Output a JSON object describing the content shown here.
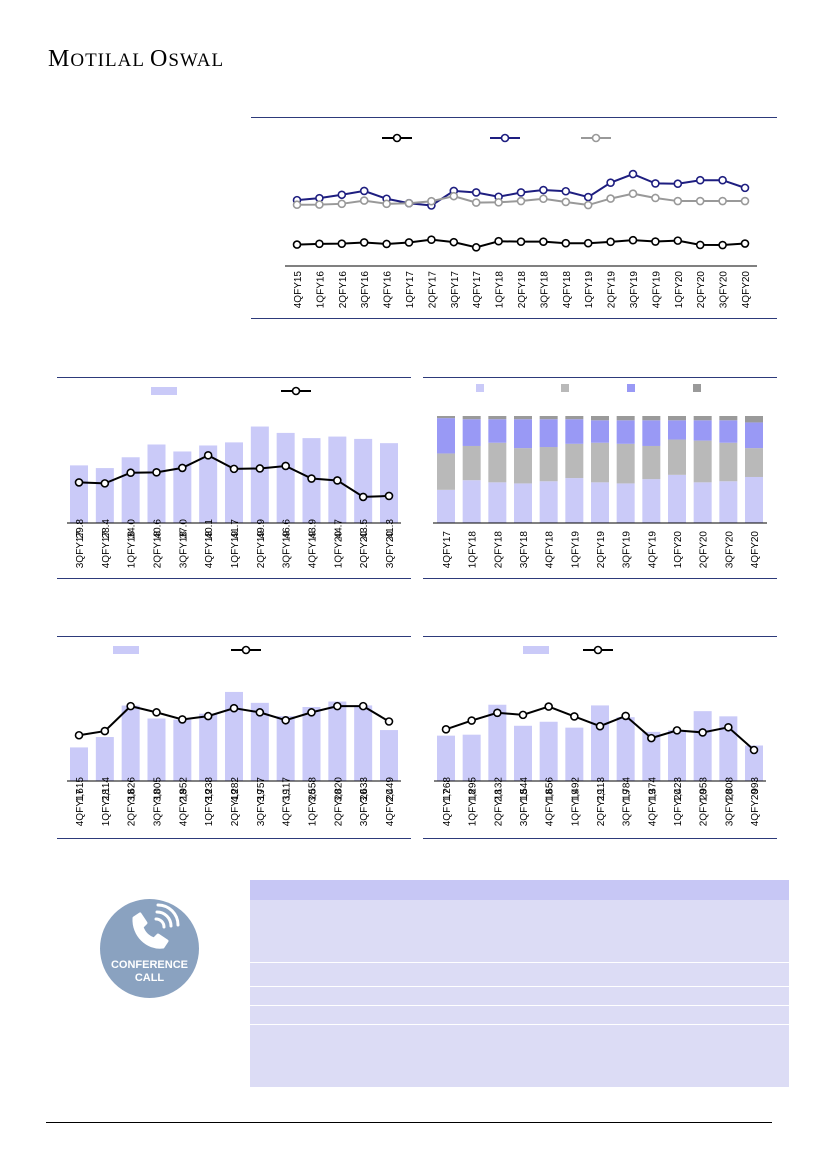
{
  "header": {
    "brand_first": "M",
    "brand_rest1": "OTILAL ",
    "brand_second": "O",
    "brand_rest2": "SWAL"
  },
  "colors": {
    "navy": "#1e1e80",
    "grey_line": "#999999",
    "bar": "#cacaf8",
    "bar_purple": "#9999f5",
    "bar_grey": "#b9b9b9",
    "bar_dark_grey": "#9a9a9a",
    "rule": "#2d3a7a"
  },
  "chart_data": [
    {
      "type": "line",
      "categories": [
        "4QFY15",
        "1QFY16",
        "2QFY16",
        "3QFY16",
        "4QFY16",
        "1QFY17",
        "2QFY17",
        "3QFY17",
        "4QFY17",
        "1QFY18",
        "2QFY18",
        "3QFY18",
        "4QFY18",
        "1QFY19",
        "2QFY19",
        "3QFY19",
        "4QFY19",
        "1QFY20",
        "2QFY20",
        "3QFY20",
        "4QFY20"
      ],
      "series": [
        {
          "values": [
            12.0,
            12.5,
            12.6,
            13.4,
            12.4,
            13.4,
            15.2,
            13.6,
            10.2,
            14.2,
            13.9,
            13.9,
            12.9,
            12.9,
            13.8,
            14.9,
            14.0,
            14.6,
            11.8,
            11.7,
            12.7
          ]
        },
        {
          "values": [
            41.0,
            42.3,
            44.5,
            47.0,
            41.9,
            39.0,
            37.5,
            47.0,
            46.0,
            43.2,
            46.0,
            47.6,
            46.8,
            43.0,
            52.4,
            58.0,
            51.9,
            51.7,
            54.0,
            54.0,
            49.0
          ]
        },
        {
          "values": [
            38.0,
            38.1,
            38.6,
            40.7,
            38.6,
            39.0,
            40.3,
            43.6,
            39.4,
            39.6,
            40.4,
            41.9,
            39.8,
            37.8,
            42.0,
            45.2,
            42.4,
            40.4,
            40.4,
            40.4,
            40.4
          ]
        }
      ],
      "ylim": [
        0,
        75
      ]
    },
    {
      "type": "bar",
      "categories": [
        "3QFY17",
        "4QFY17",
        "1QFY18",
        "2QFY18",
        "3QFY18",
        "4QFY18",
        "1QFY19",
        "2QFY19",
        "3QFY19",
        "4QFY19",
        "1QFY20",
        "2QFY20",
        "3QFY20"
      ],
      "bar_values": [
        29.8,
        28.4,
        34.0,
        40.6,
        37.0,
        40.1,
        41.7,
        49.9,
        46.6,
        43.9,
        44.7,
        43.5,
        41.3
      ],
      "line_values": [
        21.0,
        20.5,
        26.0,
        26.2,
        28.5,
        35.0,
        28.0,
        28.2,
        29.5,
        23.0,
        22.0,
        13.5,
        14.0
      ],
      "ylim": [
        0,
        60
      ]
    },
    {
      "type": "bar",
      "stacked": true,
      "categories": [
        "4QFY17",
        "1QFY18",
        "2QFY18",
        "3QFY18",
        "4QFY18",
        "1QFY19",
        "2QFY19",
        "3QFY19",
        "4QFY19",
        "1QFY20",
        "2QFY20",
        "3QFY20",
        "4QFY20"
      ],
      "series": [
        {
          "values": [
            31,
            40,
            38,
            37,
            39,
            42,
            38,
            37,
            41,
            45,
            38,
            39,
            43
          ]
        },
        {
          "values": [
            34,
            32,
            37,
            33,
            32,
            32,
            37,
            37,
            31,
            33,
            39,
            36,
            27
          ]
        },
        {
          "values": [
            33,
            25,
            22,
            27,
            26,
            23,
            21,
            22,
            24,
            18,
            19,
            21,
            24
          ]
        },
        {
          "values": [
            2,
            3,
            3,
            3,
            3,
            3,
            4,
            4,
            4,
            4,
            4,
            4,
            6
          ]
        }
      ],
      "ylim": [
        0,
        100
      ]
    },
    {
      "type": "bar",
      "categories": [
        "4QFY17",
        "1QFY18",
        "2QFY18",
        "3QFY18",
        "4QFY18",
        "1QFY19",
        "2QFY19",
        "3QFY19",
        "4QFY19",
        "1QFY20",
        "2QFY20",
        "3QFY20",
        "4QFY20"
      ],
      "bar_values": [
        1615,
        2114,
        3626,
        3005,
        2952,
        3238,
        4282,
        3757,
        3117,
        3558,
        3820,
        3633,
        2449
      ],
      "bar_labels": [
        "1,615",
        "2,114",
        "3,626",
        "3,005",
        "2,952",
        "3,238",
        "4,282",
        "3,757",
        "3,117",
        "3,558",
        "3,820",
        "3,633",
        "2,449"
      ],
      "line_values": [
        11.0,
        12.0,
        18.0,
        16.5,
        14.8,
        15.6,
        17.5,
        16.5,
        14.6,
        16.5,
        18.0,
        18.0,
        14.3
      ],
      "ylim_bar": [
        0,
        5000
      ],
      "ylim_line": [
        0,
        25
      ]
    },
    {
      "type": "bar",
      "categories": [
        "4QFY17",
        "1QFY18",
        "2QFY18",
        "3QFY18",
        "4QFY18",
        "1QFY19",
        "2QFY19",
        "3QFY19",
        "4QFY19",
        "1QFY20",
        "2QFY20",
        "3QFY20",
        "4QFY20"
      ],
      "bar_values": [
        1268,
        1295,
        2132,
        1544,
        1656,
        1492,
        2113,
        1784,
        1374,
        1423,
        1953,
        1808,
        993
      ],
      "bar_labels": [
        "1,268",
        "1,295",
        "2,132",
        "1,544",
        "1,656",
        "1,492",
        "2,113",
        "1,784",
        "1,374",
        "1,423",
        "1,953",
        "1,808",
        "993"
      ],
      "line_values": [
        10.0,
        11.7,
        13.2,
        12.8,
        14.4,
        12.5,
        10.6,
        12.6,
        8.3,
        9.8,
        9.4,
        10.4,
        6.0
      ],
      "ylim_bar": [
        0,
        2600
      ],
      "ylim_line": [
        0,
        18
      ]
    }
  ],
  "callout": {
    "badge_line1": "CONFERENCE",
    "badge_line2": "CALL"
  }
}
